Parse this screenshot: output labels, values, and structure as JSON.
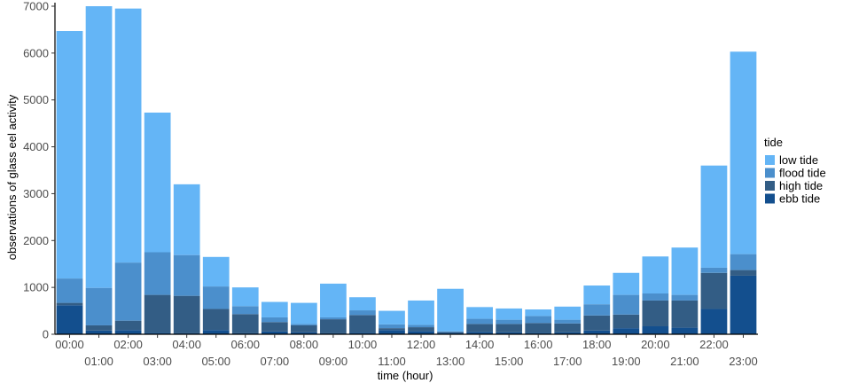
{
  "chart_data": {
    "type": "bar",
    "stacked": true,
    "title": "",
    "xlabel": "time (hour)",
    "ylabel": "observations of glass eel activity",
    "ylim": [
      0,
      7000
    ],
    "yticks": [
      0,
      1000,
      2000,
      3000,
      4000,
      5000,
      6000,
      7000
    ],
    "grid": false,
    "legend_position": "right",
    "legend_title": "tide",
    "categories": [
      "00:00",
      "01:00",
      "02:00",
      "03:00",
      "04:00",
      "05:00",
      "06:00",
      "07:00",
      "08:00",
      "09:00",
      "10:00",
      "11:00",
      "12:00",
      "13:00",
      "14:00",
      "15:00",
      "16:00",
      "17:00",
      "18:00",
      "19:00",
      "20:00",
      "21:00",
      "22:00",
      "23:00"
    ],
    "series": [
      {
        "name": "ebb tide",
        "color": "#134f8e",
        "values": [
          620,
          80,
          90,
          30,
          20,
          90,
          20,
          60,
          40,
          20,
          30,
          90,
          70,
          30,
          50,
          40,
          30,
          40,
          80,
          130,
          170,
          140,
          540,
          1250
        ]
      },
      {
        "name": "high tide",
        "color": "#335d85",
        "values": [
          50,
          110,
          200,
          810,
          800,
          450,
          410,
          200,
          150,
          300,
          380,
          40,
          80,
          20,
          170,
          180,
          210,
          190,
          320,
          290,
          550,
          580,
          770,
          120
        ]
      },
      {
        "name": "flood tide",
        "color": "#4b8fcc",
        "values": [
          520,
          800,
          1240,
          910,
          870,
          480,
          170,
          100,
          30,
          40,
          100,
          80,
          50,
          10,
          110,
          90,
          150,
          80,
          240,
          420,
          150,
          120,
          110,
          340
        ]
      },
      {
        "name": "low tide",
        "color": "#64b5f6",
        "values": [
          5280,
          6010,
          5420,
          2980,
          1510,
          630,
          400,
          330,
          450,
          720,
          280,
          290,
          520,
          910,
          250,
          240,
          140,
          280,
          400,
          470,
          790,
          1010,
          2180,
          4320
        ]
      }
    ]
  }
}
